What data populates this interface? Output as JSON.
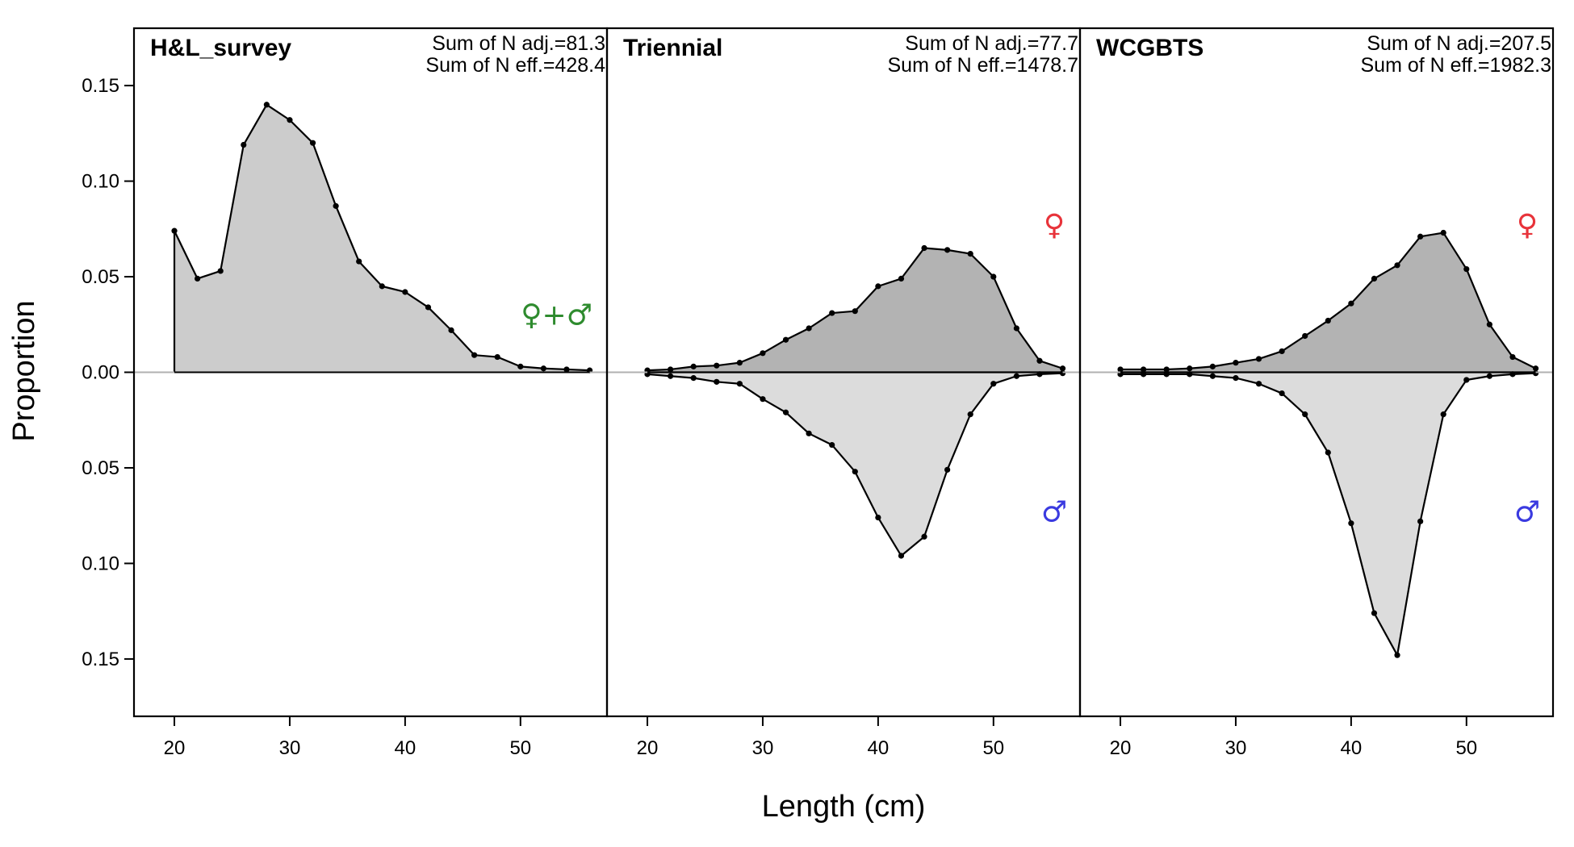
{
  "chart_data": {
    "type": "area",
    "ylabel": "Proportion",
    "xlabel": "Length (cm)",
    "ylim": [
      -0.18,
      0.18
    ],
    "xlim": [
      16.5,
      57.5
    ],
    "x_ticks": [
      20,
      30,
      40,
      50
    ],
    "y_ticks": [
      {
        "value": 0.15,
        "label": "0.15"
      },
      {
        "value": 0.1,
        "label": "0.10"
      },
      {
        "value": 0.05,
        "label": "0.05"
      },
      {
        "value": 0.0,
        "label": "0.00"
      },
      {
        "value": -0.05,
        "label": "0.05"
      },
      {
        "value": -0.1,
        "label": "0.10"
      },
      {
        "value": -0.15,
        "label": "0.15"
      }
    ],
    "colors": {
      "combined_fill": "#cccccc",
      "female_fill": "#b3b3b3",
      "male_fill": "#dcdcdc",
      "zero_line": "#b0b0b0",
      "combined_symbol": "#2e8b2e",
      "female_symbol": "#e8333a",
      "male_symbol": "#3a3ae0"
    },
    "panels": [
      {
        "title": "H&L_survey",
        "sum_adj": "Sum of N adj.=81.3",
        "sum_eff": "Sum of N eff.=428.4",
        "sex_mode": "combined",
        "symbol": "♀+♂",
        "x": [
          20,
          22,
          24,
          26,
          28,
          30,
          32,
          34,
          36,
          38,
          40,
          42,
          44,
          46,
          48,
          50,
          52,
          54,
          56
        ],
        "series": [
          {
            "sex": "combined",
            "values": [
              0.074,
              0.049,
              0.053,
              0.119,
              0.14,
              0.132,
              0.12,
              0.087,
              0.058,
              0.045,
              0.042,
              0.034,
              0.022,
              0.009,
              0.008,
              0.003,
              0.002,
              0.0015,
              0.001
            ]
          }
        ]
      },
      {
        "title": "Triennial",
        "sum_adj": "Sum of N adj.=77.7",
        "sum_eff": "Sum of N eff.=1478.7",
        "sex_mode": "split",
        "female_symbol": "♀",
        "male_symbol": "♂",
        "x": [
          20,
          22,
          24,
          26,
          28,
          30,
          32,
          34,
          36,
          38,
          40,
          42,
          44,
          46,
          48,
          50,
          52,
          54,
          56
        ],
        "series": [
          {
            "sex": "female",
            "values": [
              0.001,
              0.0015,
              0.003,
              0.0035,
              0.005,
              0.01,
              0.017,
              0.023,
              0.031,
              0.032,
              0.045,
              0.049,
              0.065,
              0.064,
              0.062,
              0.05,
              0.023,
              0.006,
              0.002
            ]
          },
          {
            "sex": "male",
            "values": [
              0.001,
              0.002,
              0.003,
              0.005,
              0.006,
              0.014,
              0.021,
              0.032,
              0.038,
              0.052,
              0.076,
              0.096,
              0.086,
              0.051,
              0.022,
              0.006,
              0.002,
              0.001,
              0.0005
            ]
          }
        ]
      },
      {
        "title": "WCGBTS",
        "sum_adj": "Sum of N adj.=207.5",
        "sum_eff": "Sum of N eff.=1982.3",
        "sex_mode": "split",
        "female_symbol": "♀",
        "male_symbol": "♂",
        "x": [
          20,
          22,
          24,
          26,
          28,
          30,
          32,
          34,
          36,
          38,
          40,
          42,
          44,
          46,
          48,
          50,
          52,
          54,
          56
        ],
        "series": [
          {
            "sex": "female",
            "values": [
              0.0015,
              0.0015,
              0.0015,
              0.002,
              0.003,
              0.005,
              0.007,
              0.011,
              0.019,
              0.027,
              0.036,
              0.049,
              0.056,
              0.071,
              0.073,
              0.054,
              0.025,
              0.008,
              0.002
            ]
          },
          {
            "sex": "male",
            "values": [
              0.001,
              0.001,
              0.001,
              0.001,
              0.002,
              0.003,
              0.006,
              0.011,
              0.022,
              0.042,
              0.079,
              0.126,
              0.148,
              0.078,
              0.022,
              0.004,
              0.002,
              0.001,
              0.0005
            ]
          }
        ]
      }
    ]
  }
}
